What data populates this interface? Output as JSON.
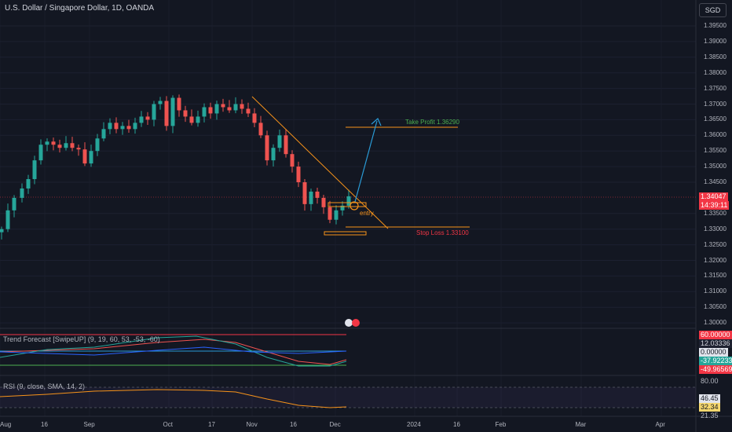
{
  "header": {
    "symbol_title": "U.S. Dollar / Singapore Dollar, 1D, OANDA",
    "currency": "SGD"
  },
  "price_axis": {
    "ticks": [
      "1.39500",
      "1.39000",
      "1.38500",
      "1.38000",
      "1.37500",
      "1.37000",
      "1.36500",
      "1.36000",
      "1.35500",
      "1.35000",
      "1.34500",
      "1.33500",
      "1.33000",
      "1.32500",
      "1.32000",
      "1.31500",
      "1.31000",
      "1.30500",
      "1.30000"
    ],
    "current_price": "1.34047",
    "countdown": "14:39:11"
  },
  "time_axis": {
    "labels": [
      "Aug",
      "16",
      "Sep",
      "Oct",
      "17",
      "Nov",
      "16",
      "Dec",
      "2024",
      "16",
      "Feb",
      "Mar",
      "Apr"
    ]
  },
  "annotations": {
    "take_profit": "Take Profit 1.36290",
    "stop_loss": "Stop Loss 1.33100",
    "entry": "entry"
  },
  "trend_forecast": {
    "title": "Trend Forecast [SwipeUP] (9, 19, 60, 53, -53, -60)",
    "values": [
      "60.00000",
      "12.03336",
      "0.00000",
      "-37.92233",
      "-49.96569"
    ]
  },
  "rsi": {
    "title": "RSI (9, close, SMA, 14, 2)",
    "level": "80.00",
    "values": [
      "46.45",
      "32.34",
      "21.35"
    ]
  },
  "colors": {
    "background": "#131722",
    "up_candle": "#26a69a",
    "down_candle": "#ef5350",
    "trendline": "#f7931a",
    "arrow": "#2a9bd6",
    "take_profit": "#4caf50",
    "stop_loss": "#f23645"
  }
}
